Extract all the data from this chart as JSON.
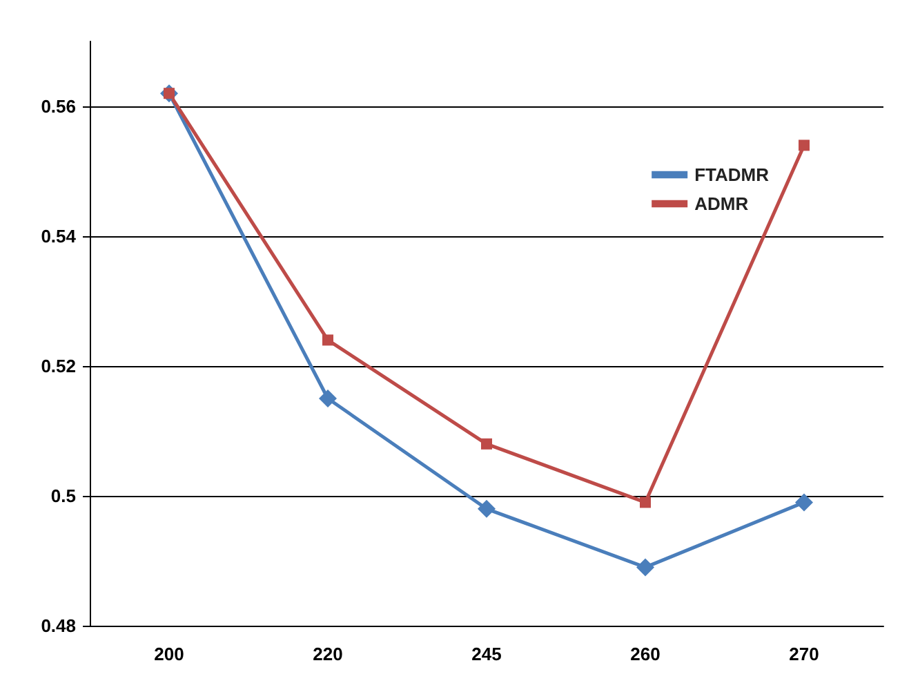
{
  "chart_data": {
    "type": "line",
    "categories": [
      "200",
      "220",
      "245",
      "260",
      "270"
    ],
    "series": [
      {
        "name": "FTADMR",
        "color": "#4a7ebb",
        "marker": "diamond",
        "values": [
          0.562,
          0.515,
          0.498,
          0.489,
          0.499
        ]
      },
      {
        "name": "ADMR",
        "color": "#be4b48",
        "marker": "square",
        "values": [
          0.562,
          0.524,
          0.508,
          0.499,
          0.554
        ]
      }
    ],
    "ylim": [
      0.48,
      0.57
    ],
    "yticks": [
      0.48,
      0.5,
      0.52,
      0.54,
      0.56
    ],
    "grid": "y",
    "legend": "top right"
  }
}
